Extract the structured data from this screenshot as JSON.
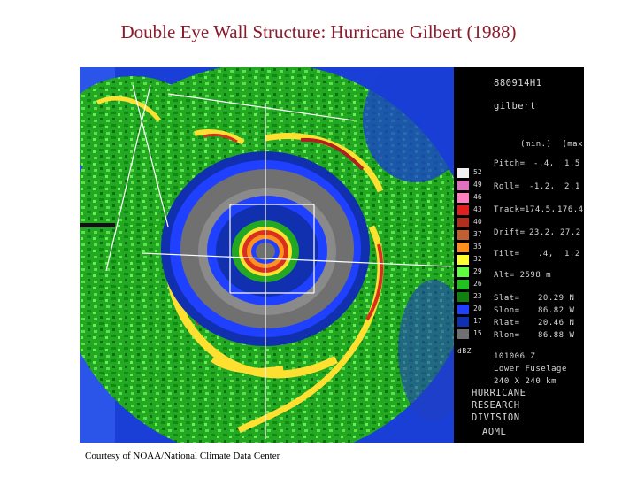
{
  "title": "Double Eye Wall Structure: Hurricane Gilbert (1988)",
  "credit": "Courtesy of NOAA/National Climate Data Center",
  "panel": {
    "id": "880914H1",
    "name": "gilbert",
    "minmax_header": "(min.)  (max.)",
    "params": [
      {
        "label": "Pitch=",
        "min": "-.4,",
        "max": "1.5"
      },
      {
        "label": "Roll=",
        "min": "-1.2,",
        "max": "2.1"
      },
      {
        "label": "Track=",
        "min": "174.5,",
        "max": "176.4"
      },
      {
        "label": "Drift=",
        "min": "23.2,",
        "max": "27.2"
      },
      {
        "label": "Tilt=",
        "min": ".4,",
        "max": "1.2"
      }
    ],
    "alt": "Alt= 2598 m",
    "coords": [
      {
        "label": "Slat=",
        "value": "20.29 N"
      },
      {
        "label": "Slon=",
        "value": "86.82 W"
      },
      {
        "label": "Rlat=",
        "value": "20.46 N"
      },
      {
        "label": "Rlon=",
        "value": "86.88 W"
      }
    ],
    "time": "101006 Z",
    "sensor": "Lower Fuselage",
    "extent": "240 X 240 km",
    "org": [
      "HURRICANE",
      "RESEARCH",
      "DIVISION"
    ],
    "lab": "AOML",
    "legend_unit": "dBZ",
    "legend": [
      {
        "value": "52",
        "color": "#f0f0f0"
      },
      {
        "value": "49",
        "color": "#e070c0"
      },
      {
        "value": "46",
        "color": "#ff80c0"
      },
      {
        "value": "43",
        "color": "#e02020"
      },
      {
        "value": "40",
        "color": "#b03020"
      },
      {
        "value": "37",
        "color": "#c06030"
      },
      {
        "value": "35",
        "color": "#ff9020"
      },
      {
        "value": "32",
        "color": "#ffff30"
      },
      {
        "value": "29",
        "color": "#60ff40"
      },
      {
        "value": "26",
        "color": "#20c020"
      },
      {
        "value": "23",
        "color": "#108010"
      },
      {
        "value": "20",
        "color": "#2040ff"
      },
      {
        "value": "17",
        "color": "#1030b0"
      },
      {
        "value": "15",
        "color": "#707070"
      }
    ]
  }
}
